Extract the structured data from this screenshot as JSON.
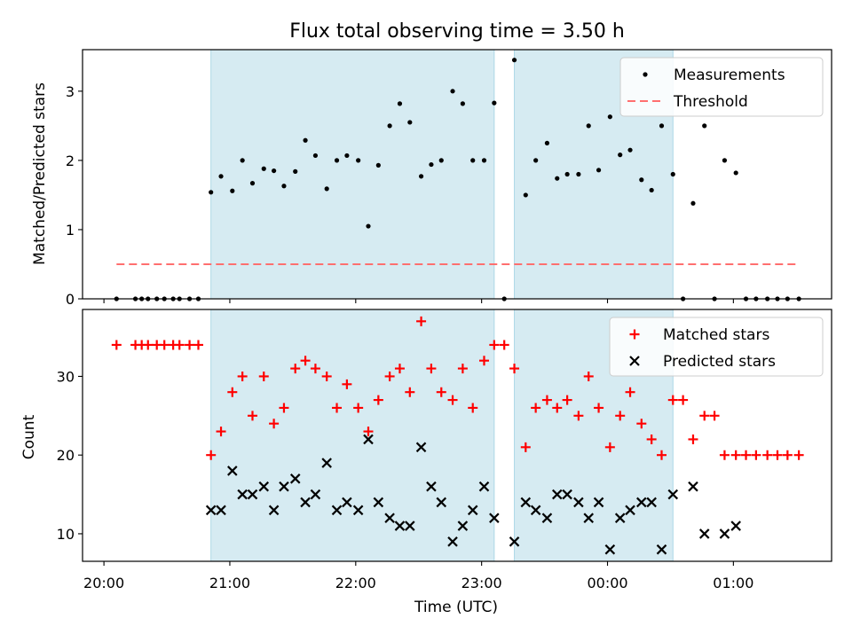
{
  "title": "Flux total observing time = 3.50 h",
  "x_tick_labels": [
    "20:00",
    "21:00",
    "22:00",
    "23:00",
    "00:00",
    "01:00"
  ],
  "x_tick_values_h": [
    20,
    21,
    22,
    23,
    24,
    25
  ],
  "colors": {
    "shade": "#add8e6",
    "measure": "#000000",
    "threshold": "#ff6f6f",
    "matched": "#ff0000",
    "predicted": "#000000"
  },
  "chart_data": [
    {
      "type": "scatter",
      "ylabel": "Matched/Predicted stars",
      "xlim": [
        19.83,
        25.78
      ],
      "ylim": [
        0,
        3.6
      ],
      "yticks": [
        0,
        1,
        2,
        3
      ],
      "shaded_intervals": [
        [
          20.85,
          23.1
        ],
        [
          23.26,
          24.52
        ]
      ],
      "legend": {
        "placement": "top-right",
        "entries": [
          "Measurements",
          "Threshold"
        ]
      },
      "threshold": {
        "name": "Threshold",
        "value": 0.5,
        "x_range": [
          20.1,
          25.52
        ]
      },
      "series": [
        {
          "name": "Measurements",
          "x": [
            20.1,
            20.25,
            20.3,
            20.35,
            20.42,
            20.48,
            20.55,
            20.6,
            20.68,
            20.75,
            20.85,
            20.93,
            21.02,
            21.1,
            21.18,
            21.27,
            21.35,
            21.43,
            21.52,
            21.6,
            21.68,
            21.77,
            21.85,
            21.93,
            22.02,
            22.1,
            22.18,
            22.27,
            22.35,
            22.43,
            22.52,
            22.6,
            22.68,
            22.77,
            22.85,
            22.93,
            23.02,
            23.1,
            23.18,
            23.26,
            23.35,
            23.43,
            23.52,
            23.6,
            23.68,
            23.77,
            23.85,
            23.93,
            24.02,
            24.1,
            24.18,
            24.27,
            24.35,
            24.43,
            24.52,
            24.6,
            24.68,
            24.77,
            24.85,
            24.93,
            25.02,
            25.1,
            25.18,
            25.27,
            25.35,
            25.43,
            25.52
          ],
          "y": [
            0,
            0,
            0,
            0,
            0,
            0,
            0,
            0,
            0,
            0,
            1.54,
            1.77,
            1.56,
            2.0,
            1.67,
            1.88,
            1.85,
            1.63,
            1.84,
            2.29,
            2.07,
            1.59,
            2.0,
            2.07,
            2.0,
            1.05,
            1.93,
            2.5,
            2.82,
            2.55,
            1.77,
            1.94,
            2.0,
            3.0,
            2.82,
            2.0,
            2.0,
            2.83,
            0,
            3.45,
            1.5,
            2.0,
            2.25,
            1.74,
            1.8,
            1.8,
            2.5,
            1.86,
            2.63,
            2.08,
            2.15,
            1.72,
            1.57,
            2.5,
            1.8,
            0,
            1.38,
            2.5,
            0,
            2.0,
            1.82,
            0,
            0,
            0,
            0,
            0,
            0
          ]
        }
      ]
    },
    {
      "type": "scatter",
      "xlabel": "Time (UTC)",
      "ylabel": "Count",
      "xlim": [
        19.83,
        25.78
      ],
      "ylim": [
        6.5,
        38.5
      ],
      "yticks": [
        10,
        20,
        30
      ],
      "shaded_intervals": [
        [
          20.85,
          23.1
        ],
        [
          23.26,
          24.52
        ]
      ],
      "legend": {
        "placement": "top-right",
        "entries": [
          "Matched stars",
          "Predicted stars"
        ]
      },
      "series": [
        {
          "name": "Matched stars",
          "marker": "plus",
          "x": [
            20.1,
            20.25,
            20.3,
            20.35,
            20.42,
            20.48,
            20.55,
            20.6,
            20.68,
            20.75,
            20.85,
            20.93,
            21.02,
            21.1,
            21.18,
            21.27,
            21.35,
            21.43,
            21.52,
            21.6,
            21.68,
            21.77,
            21.85,
            21.93,
            22.02,
            22.1,
            22.18,
            22.27,
            22.35,
            22.43,
            22.52,
            22.6,
            22.68,
            22.77,
            22.85,
            22.93,
            23.02,
            23.1,
            23.18,
            23.26,
            23.35,
            23.43,
            23.52,
            23.6,
            23.68,
            23.77,
            23.85,
            23.93,
            24.02,
            24.1,
            24.18,
            24.27,
            24.35,
            24.43,
            24.52,
            24.6,
            24.68,
            24.77,
            24.85,
            24.93,
            25.02,
            25.1,
            25.18,
            25.27,
            25.35,
            25.43,
            25.52
          ],
          "y": [
            34,
            34,
            34,
            34,
            34,
            34,
            34,
            34,
            34,
            34,
            20,
            23,
            28,
            30,
            25,
            30,
            24,
            26,
            31,
            32,
            31,
            30,
            26,
            29,
            26,
            23,
            27,
            30,
            31,
            28,
            37,
            31,
            28,
            27,
            31,
            26,
            32,
            34,
            34,
            31,
            21,
            26,
            27,
            26,
            27,
            25,
            30,
            26,
            21,
            25,
            28,
            24,
            22,
            20,
            27,
            27,
            22,
            25,
            25,
            20,
            20,
            20,
            20,
            20,
            20,
            20,
            20
          ]
        },
        {
          "name": "Predicted stars",
          "marker": "x",
          "x": [
            20.85,
            20.93,
            21.02,
            21.1,
            21.18,
            21.27,
            21.35,
            21.43,
            21.52,
            21.6,
            21.68,
            21.77,
            21.85,
            21.93,
            22.02,
            22.1,
            22.18,
            22.27,
            22.35,
            22.43,
            22.52,
            22.6,
            22.68,
            22.77,
            22.85,
            22.93,
            23.02,
            23.1,
            23.26,
            23.35,
            23.43,
            23.52,
            23.6,
            23.68,
            23.77,
            23.85,
            23.93,
            24.02,
            24.1,
            24.18,
            24.27,
            24.35,
            24.43,
            24.52,
            24.68,
            24.77,
            24.93,
            25.02
          ],
          "y": [
            13,
            13,
            18,
            15,
            15,
            16,
            13,
            16,
            17,
            14,
            15,
            19,
            13,
            14,
            13,
            22,
            14,
            12,
            11,
            11,
            21,
            16,
            14,
            9,
            11,
            13,
            16,
            12,
            9,
            14,
            13,
            12,
            15,
            15,
            14,
            12,
            14,
            8,
            12,
            13,
            14,
            14,
            8,
            15,
            16,
            10,
            10,
            11
          ]
        }
      ]
    }
  ]
}
